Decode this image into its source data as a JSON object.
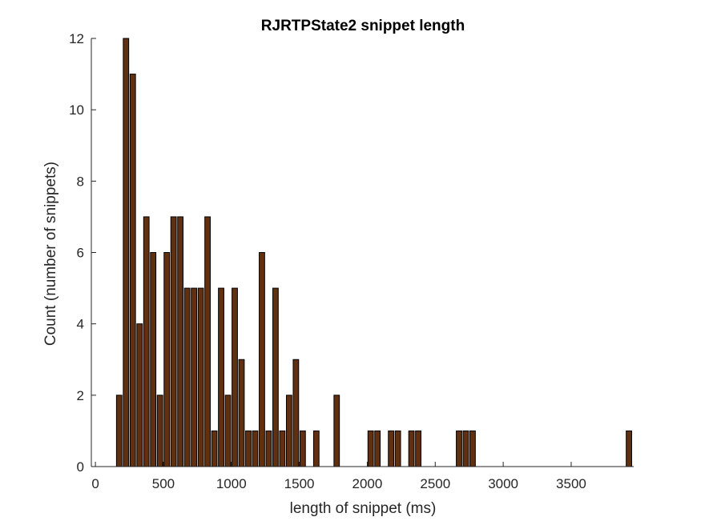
{
  "chart_data": {
    "type": "bar",
    "title": "RJRTPState2 snippet length",
    "xlabel": "length of snippet (ms)",
    "ylabel": "Count (number of snippets)",
    "xlim": [
      -30,
      3960
    ],
    "ylim": [
      0,
      12
    ],
    "bin_width": 50,
    "x_ticks": [
      0,
      500,
      1000,
      1500,
      2000,
      2500,
      3000,
      3500
    ],
    "x_tick_labels": [
      "0",
      "500",
      "1000",
      "1500",
      "2000",
      "2500",
      "3000",
      "3500"
    ],
    "y_ticks": [
      0,
      2,
      4,
      6,
      8,
      10,
      12
    ],
    "y_tick_labels": [
      "0",
      "2",
      "4",
      "6",
      "8",
      "10",
      "12"
    ],
    "grid": false,
    "legend": "none",
    "bar_color": "#603010",
    "bar_edge_color": "#000000",
    "x": [
      175,
      225,
      275,
      325,
      375,
      425,
      475,
      525,
      575,
      625,
      675,
      725,
      775,
      825,
      875,
      925,
      975,
      1025,
      1075,
      1125,
      1175,
      1225,
      1275,
      1325,
      1375,
      1425,
      1475,
      1525,
      1575,
      1625,
      1675,
      1725,
      1775,
      1825,
      1875,
      1925,
      1975,
      2025,
      2075,
      2125,
      2175,
      2225,
      2275,
      2325,
      2375,
      2425,
      2475,
      2525,
      2575,
      2625,
      2675,
      2725,
      2775,
      2825,
      2875,
      2925,
      2975,
      3025,
      3075,
      3125,
      3175,
      3225,
      3275,
      3325,
      3375,
      3425,
      3475,
      3525,
      3575,
      3625,
      3675,
      3725,
      3775,
      3825,
      3875,
      3925
    ],
    "values": [
      2,
      12,
      11,
      4,
      7,
      6,
      2,
      6,
      7,
      7,
      5,
      5,
      5,
      7,
      1,
      5,
      2,
      5,
      3,
      1,
      1,
      6,
      1,
      5,
      1,
      2,
      3,
      1,
      0,
      1,
      0,
      0,
      2,
      0,
      0,
      0,
      0,
      1,
      1,
      0,
      1,
      1,
      0,
      1,
      1,
      0,
      0,
      0,
      0,
      0,
      1,
      1,
      1,
      0,
      0,
      0,
      0,
      0,
      0,
      0,
      0,
      0,
      0,
      0,
      0,
      0,
      0,
      0,
      0,
      0,
      0,
      0,
      0,
      0,
      0,
      1
    ]
  }
}
